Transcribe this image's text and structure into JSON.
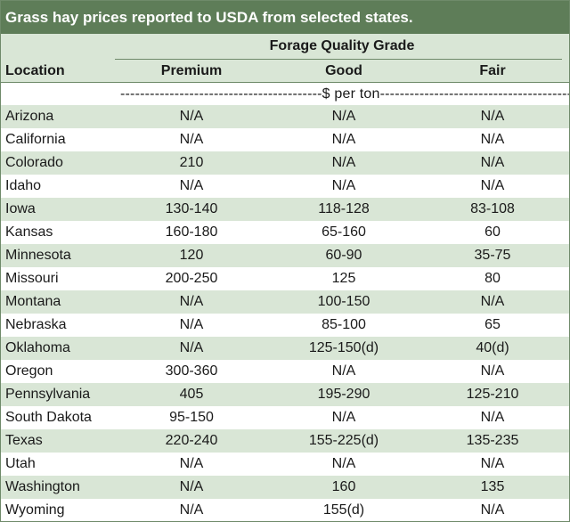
{
  "title": "Grass hay prices reported to USDA from selected states.",
  "header": {
    "group_label": "Forage Quality Grade",
    "location_label": "Location",
    "columns": [
      "Premium",
      "Good",
      "Fair"
    ]
  },
  "unit_row": "-----------------------------------------$ per ton-----------------------------------------",
  "colors": {
    "title_bg": "#5e7d58",
    "stripe": "#d9e6d6",
    "rule": "#6f8a6a"
  },
  "rows": [
    {
      "location": "Arizona",
      "premium": "N/A",
      "good": "N/A",
      "fair": "N/A"
    },
    {
      "location": "California",
      "premium": "N/A",
      "good": "N/A",
      "fair": "N/A"
    },
    {
      "location": "Colorado",
      "premium": "210",
      "good": "N/A",
      "fair": "N/A"
    },
    {
      "location": "Idaho",
      "premium": "N/A",
      "good": "N/A",
      "fair": "N/A"
    },
    {
      "location": "Iowa",
      "premium": "130-140",
      "good": "118-128",
      "fair": "83-108"
    },
    {
      "location": "Kansas",
      "premium": "160-180",
      "good": "65-160",
      "fair": "60"
    },
    {
      "location": "Minnesota",
      "premium": "120",
      "good": "60-90",
      "fair": "35-75"
    },
    {
      "location": "Missouri",
      "premium": "200-250",
      "good": "125",
      "fair": "80"
    },
    {
      "location": "Montana",
      "premium": "N/A",
      "good": "100-150",
      "fair": "N/A"
    },
    {
      "location": "Nebraska",
      "premium": "N/A",
      "good": "85-100",
      "fair": "65"
    },
    {
      "location": "Oklahoma",
      "premium": "N/A",
      "good": "125-150(d)",
      "fair": "40(d)"
    },
    {
      "location": "Oregon",
      "premium": "300-360",
      "good": "N/A",
      "fair": "N/A"
    },
    {
      "location": "Pennsylvania",
      "premium": "405",
      "good": "195-290",
      "fair": "125-210"
    },
    {
      "location": "South Dakota",
      "premium": "95-150",
      "good": "N/A",
      "fair": "N/A"
    },
    {
      "location": "Texas",
      "premium": "220-240",
      "good": "155-225(d)",
      "fair": "135-235"
    },
    {
      "location": "Utah",
      "premium": "N/A",
      "good": "N/A",
      "fair": "N/A"
    },
    {
      "location": "Washington",
      "premium": "N/A",
      "good": "160",
      "fair": "135"
    },
    {
      "location": "Wyoming",
      "premium": "N/A",
      "good": "155(d)",
      "fair": "N/A"
    }
  ]
}
